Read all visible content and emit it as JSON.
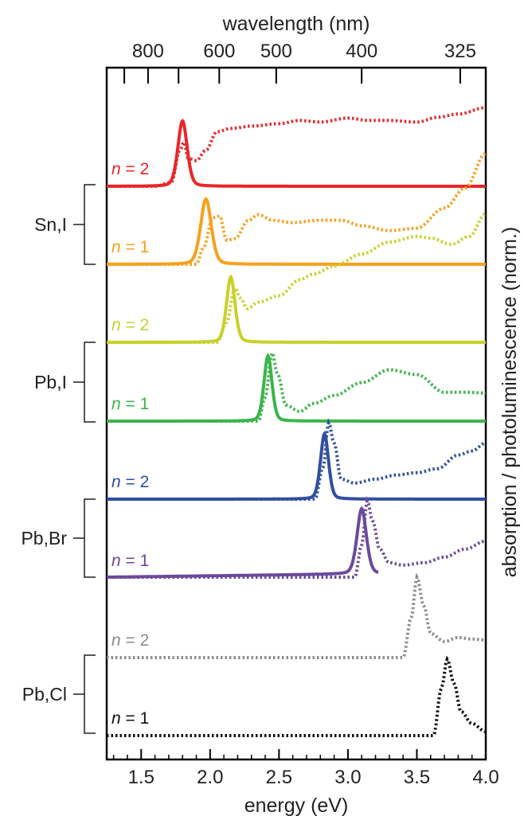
{
  "chart_data": {
    "type": "line",
    "xlabel": "energy (eV)",
    "x2label": "wavelength (nm)",
    "ylabel": "absorption / photoluminescence (norm.)",
    "xlim": [
      1.25,
      4.0
    ],
    "x_ticks": [
      "1.5",
      "2.0",
      "2.5",
      "3.0",
      "3.5",
      "4.0"
    ],
    "x2_ticks": [
      "800",
      "600",
      "500",
      "400",
      "325"
    ],
    "x2_tick_values_nm": [
      800,
      600,
      500,
      400,
      325
    ],
    "x2_minor_ticks_nm": [
      900,
      700
    ],
    "legend": "none",
    "grid": false,
    "line_styles": {
      "photoluminescence": "solid",
      "absorption": "dotted"
    },
    "groups": [
      {
        "label": "Sn,I",
        "members": [
          "n = 2",
          "n = 1"
        ]
      },
      {
        "label": "Pb,I",
        "members": [
          "n = 2",
          "n = 1"
        ]
      },
      {
        "label": "Pb,Br",
        "members": [
          "n = 2",
          "n = 1"
        ]
      },
      {
        "label": "Pb,Cl",
        "members": [
          "n = 2",
          "n = 1"
        ]
      }
    ],
    "series": [
      {
        "label": "n = 2",
        "group": "Sn,I",
        "color": "#e8262a",
        "pl_peak": 1.8,
        "pl_width": 0.035,
        "pl_range": [
          1.25,
          4.0
        ],
        "abs": [
          [
            1.25,
            0
          ],
          [
            1.6,
            0
          ],
          [
            1.72,
            0.05
          ],
          [
            1.78,
            0.45
          ],
          [
            1.81,
            0.55
          ],
          [
            1.84,
            0.35
          ],
          [
            1.9,
            0.32
          ],
          [
            1.97,
            0.45
          ],
          [
            2.05,
            0.68
          ],
          [
            2.15,
            0.72
          ],
          [
            2.3,
            0.75
          ],
          [
            2.5,
            0.78
          ],
          [
            2.65,
            0.82
          ],
          [
            2.8,
            0.8
          ],
          [
            3.0,
            0.85
          ],
          [
            3.15,
            0.82
          ],
          [
            3.3,
            0.82
          ],
          [
            3.5,
            0.8
          ],
          [
            3.65,
            0.86
          ],
          [
            3.8,
            0.9
          ],
          [
            4.0,
            0.98
          ]
        ]
      },
      {
        "label": "n = 1",
        "group": "Sn,I",
        "color": "#f8a01c",
        "pl_peak": 1.97,
        "pl_width": 0.04,
        "pl_range": [
          1.25,
          4.0
        ],
        "abs": [
          [
            1.25,
            0
          ],
          [
            1.9,
            0
          ],
          [
            1.95,
            0.2
          ],
          [
            2.02,
            0.58
          ],
          [
            2.07,
            0.6
          ],
          [
            2.12,
            0.3
          ],
          [
            2.18,
            0.32
          ],
          [
            2.28,
            0.55
          ],
          [
            2.35,
            0.62
          ],
          [
            2.45,
            0.55
          ],
          [
            2.6,
            0.52
          ],
          [
            2.8,
            0.55
          ],
          [
            2.95,
            0.55
          ],
          [
            3.1,
            0.48
          ],
          [
            3.3,
            0.42
          ],
          [
            3.5,
            0.45
          ],
          [
            3.7,
            0.7
          ],
          [
            3.85,
            0.95
          ],
          [
            4.0,
            1.38
          ]
        ]
      },
      {
        "label": "n = 2",
        "group": "Pb,I",
        "color": "#c8d12a",
        "pl_peak": 2.15,
        "pl_width": 0.032,
        "pl_range": [
          1.25,
          4.0
        ],
        "abs": [
          [
            1.25,
            0
          ],
          [
            2.05,
            0
          ],
          [
            2.12,
            0.25
          ],
          [
            2.18,
            0.68
          ],
          [
            2.22,
            0.55
          ],
          [
            2.27,
            0.42
          ],
          [
            2.35,
            0.5
          ],
          [
            2.5,
            0.58
          ],
          [
            2.65,
            0.78
          ],
          [
            2.75,
            0.85
          ],
          [
            2.9,
            0.95
          ],
          [
            3.1,
            1.1
          ],
          [
            3.3,
            1.25
          ],
          [
            3.5,
            1.32
          ],
          [
            3.6,
            1.3
          ],
          [
            3.75,
            1.22
          ],
          [
            3.88,
            1.32
          ],
          [
            4.0,
            1.6
          ]
        ]
      },
      {
        "label": "n = 1",
        "group": "Pb,I",
        "color": "#3bb54a",
        "pl_peak": 2.42,
        "pl_width": 0.03,
        "pl_range": [
          1.25,
          4.0
        ],
        "abs": [
          [
            1.25,
            0
          ],
          [
            2.35,
            0
          ],
          [
            2.4,
            0.3
          ],
          [
            2.45,
            0.85
          ],
          [
            2.49,
            0.58
          ],
          [
            2.55,
            0.2
          ],
          [
            2.65,
            0.12
          ],
          [
            2.75,
            0.22
          ],
          [
            2.9,
            0.32
          ],
          [
            3.1,
            0.48
          ],
          [
            3.3,
            0.64
          ],
          [
            3.5,
            0.58
          ],
          [
            3.7,
            0.36
          ],
          [
            3.85,
            0.36
          ],
          [
            4.0,
            0.35
          ]
        ]
      },
      {
        "label": "n = 2",
        "group": "Pb,Br",
        "color": "#2f4fa0",
        "pl_peak": 2.83,
        "pl_width": 0.03,
        "pl_range": [
          1.25,
          4.0
        ],
        "abs": [
          [
            1.25,
            0
          ],
          [
            2.76,
            0
          ],
          [
            2.82,
            0.4
          ],
          [
            2.86,
            0.95
          ],
          [
            2.9,
            0.7
          ],
          [
            2.95,
            0.25
          ],
          [
            3.05,
            0.2
          ],
          [
            3.2,
            0.25
          ],
          [
            3.35,
            0.3
          ],
          [
            3.5,
            0.33
          ],
          [
            3.65,
            0.38
          ],
          [
            3.8,
            0.55
          ],
          [
            3.9,
            0.6
          ],
          [
            4.0,
            0.7
          ]
        ]
      },
      {
        "label": "n = 1",
        "group": "Pb,Br",
        "color": "#6a4a9c",
        "pl_peak": 3.1,
        "pl_width": 0.035,
        "pl_range": [
          1.25,
          3.22
        ],
        "abs": [
          [
            1.25,
            0
          ],
          [
            3.05,
            0
          ],
          [
            3.1,
            0.4
          ],
          [
            3.14,
            0.95
          ],
          [
            3.18,
            0.7
          ],
          [
            3.23,
            0.35
          ],
          [
            3.3,
            0.18
          ],
          [
            3.4,
            0.15
          ],
          [
            3.55,
            0.18
          ],
          [
            3.7,
            0.25
          ],
          [
            3.85,
            0.35
          ],
          [
            4.0,
            0.45
          ]
        ]
      },
      {
        "label": "n = 2",
        "group": "Pb,Cl",
        "color": "#8c8c8c",
        "pl_peak": null,
        "pl_width": 0.0,
        "pl_range": [
          0,
          0
        ],
        "abs": [
          [
            1.25,
            0
          ],
          [
            3.4,
            0
          ],
          [
            3.46,
            0.5
          ],
          [
            3.5,
            1.0
          ],
          [
            3.55,
            0.65
          ],
          [
            3.6,
            0.3
          ],
          [
            3.7,
            0.2
          ],
          [
            3.8,
            0.25
          ],
          [
            3.9,
            0.23
          ],
          [
            4.0,
            0.22
          ]
        ]
      },
      {
        "label": "n = 1",
        "group": "Pb,Cl",
        "color": "#111111",
        "pl_peak": null,
        "pl_width": 0.0,
        "pl_range": [
          0,
          0
        ],
        "abs": [
          [
            1.25,
            0
          ],
          [
            3.62,
            0
          ],
          [
            3.68,
            0.6
          ],
          [
            3.72,
            0.95
          ],
          [
            3.77,
            0.65
          ],
          [
            3.82,
            0.3
          ],
          [
            3.9,
            0.15
          ],
          [
            4.0,
            0.05
          ]
        ]
      }
    ]
  }
}
